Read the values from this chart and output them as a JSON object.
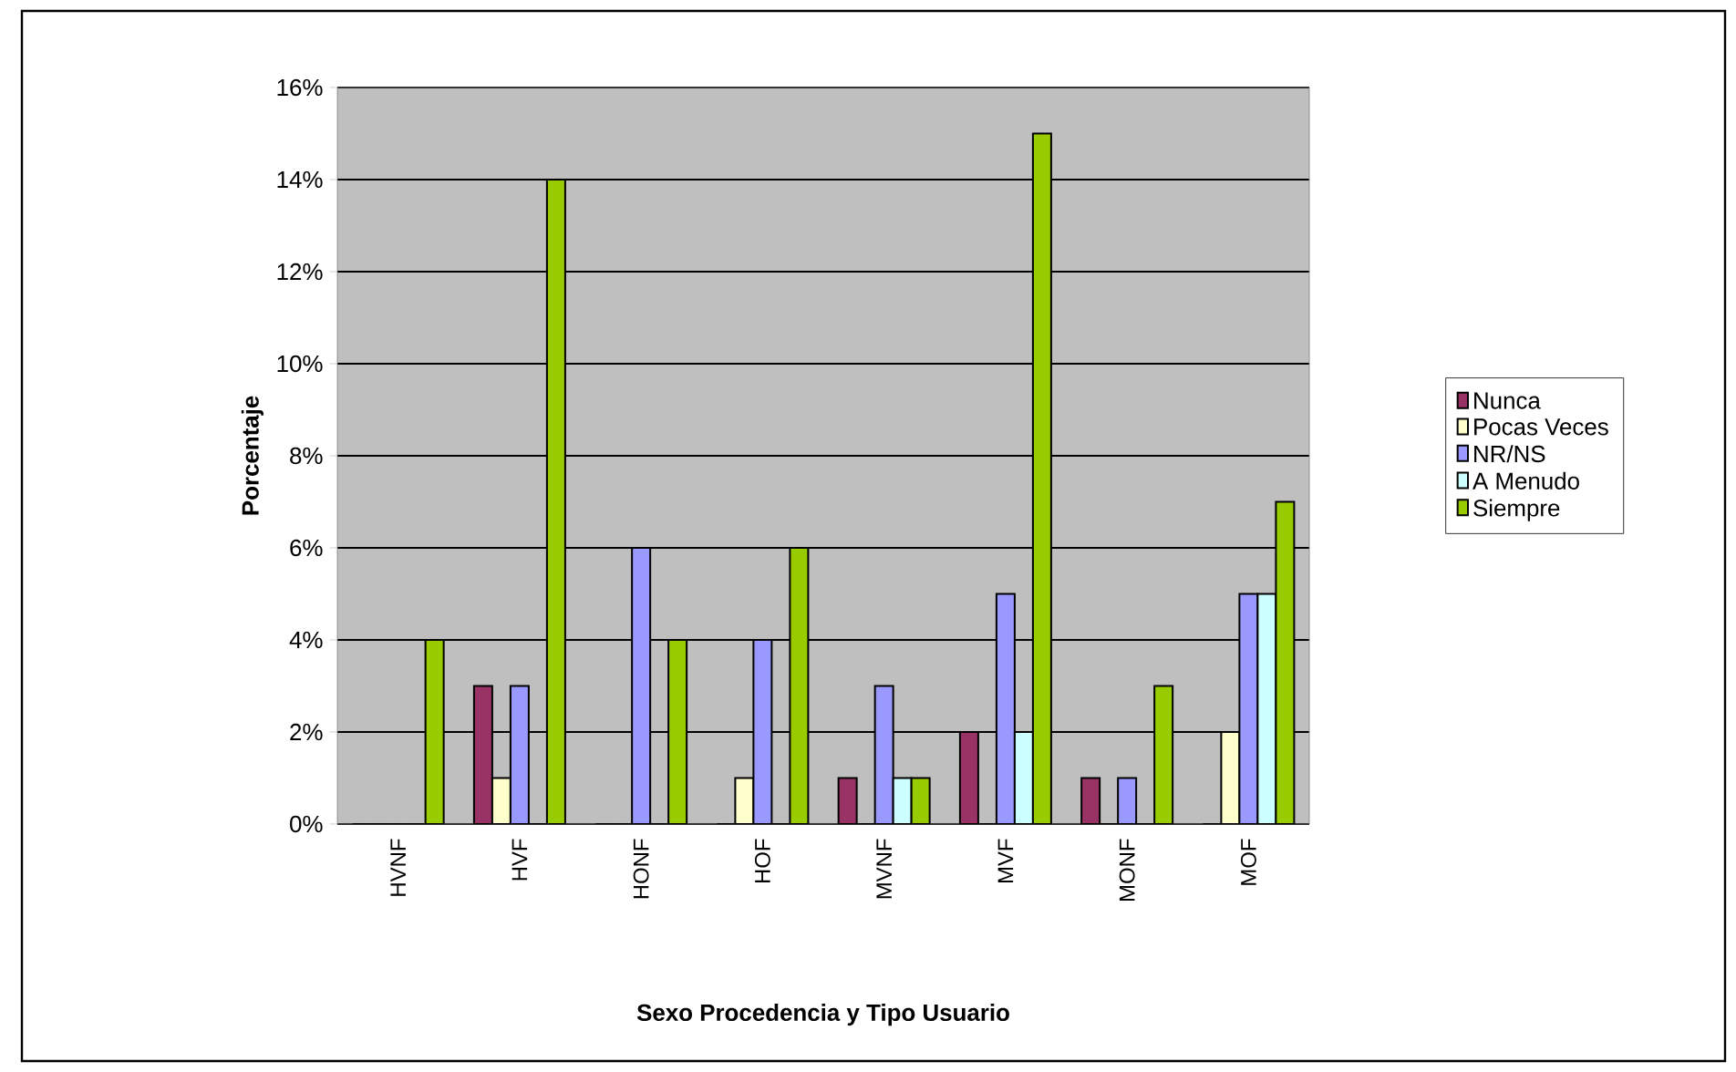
{
  "chart_data": {
    "type": "bar",
    "xlabel": "Sexo Procedencia y Tipo Usuario",
    "ylabel": "Porcentaje",
    "categories": [
      "HVNF",
      "HVF",
      "HONF",
      "HOF",
      "MVNF",
      "MVF",
      "MONF",
      "MOF"
    ],
    "series": [
      {
        "name": "Nunca",
        "color": "#993366",
        "values": [
          0,
          3,
          0,
          0,
          1,
          2,
          1,
          0
        ]
      },
      {
        "name": "Pocas Veces",
        "color": "#ffffcc",
        "values": [
          0,
          1,
          0,
          1,
          0,
          0,
          0,
          2
        ]
      },
      {
        "name": "NR/NS",
        "color": "#9999ff",
        "values": [
          0,
          3,
          6,
          4,
          3,
          5,
          1,
          5
        ]
      },
      {
        "name": "A Menudo",
        "color": "#ccffff",
        "values": [
          0,
          0,
          0,
          0,
          1,
          2,
          0,
          5
        ]
      },
      {
        "name": "Siempre",
        "color": "#99cc00",
        "values": [
          4,
          14,
          4,
          6,
          1,
          15,
          3,
          7
        ]
      }
    ],
    "ylim": [
      0,
      16
    ],
    "yticks": [
      {
        "value": 0,
        "label": "0%"
      },
      {
        "value": 2,
        "label": "2%"
      },
      {
        "value": 4,
        "label": "4%"
      },
      {
        "value": 6,
        "label": "6%"
      },
      {
        "value": 8,
        "label": "8%"
      },
      {
        "value": 10,
        "label": "10%"
      },
      {
        "value": 12,
        "label": "12%"
      },
      {
        "value": 14,
        "label": "14%"
      },
      {
        "value": 16,
        "label": "16%"
      }
    ],
    "grid": "y",
    "legend": "right"
  }
}
